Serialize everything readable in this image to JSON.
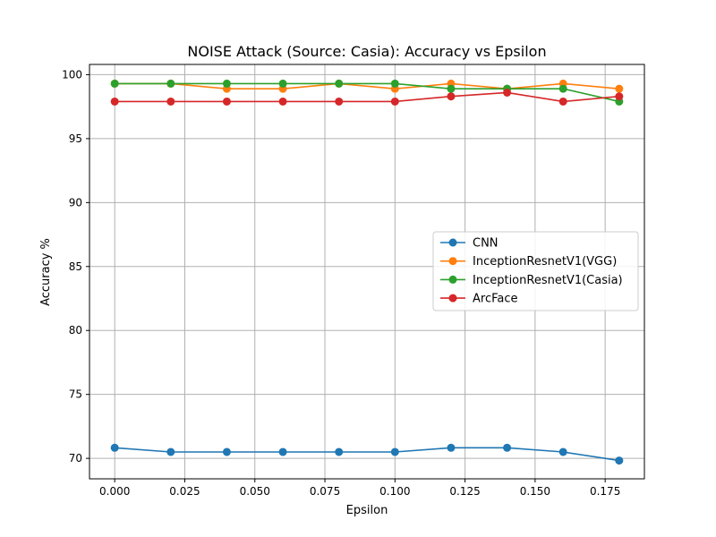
{
  "chart_data": {
    "type": "line",
    "title": "NOISE Attack (Source: Casia): Accuracy vs Epsilon",
    "xlabel": "Epsilon",
    "ylabel": "Accuracy %",
    "x": [
      0.0,
      0.02,
      0.04,
      0.06,
      0.08,
      0.1,
      0.12,
      0.14,
      0.16,
      0.18
    ],
    "xlim": [
      -0.009,
      0.189
    ],
    "ylim": [
      68.4,
      100.8
    ],
    "xticks": [
      0.0,
      0.025,
      0.05,
      0.075,
      0.1,
      0.125,
      0.15,
      0.175
    ],
    "xtick_labels": [
      "0.000",
      "0.025",
      "0.050",
      "0.075",
      "0.100",
      "0.125",
      "0.150",
      "0.175"
    ],
    "yticks": [
      70,
      75,
      80,
      85,
      90,
      95,
      100
    ],
    "ytick_labels": [
      "70",
      "75",
      "80",
      "85",
      "90",
      "95",
      "100"
    ],
    "grid": true,
    "legend_position": "center-right",
    "series": [
      {
        "name": "CNN",
        "color": "#1f77b4",
        "values": [
          70.83,
          70.5,
          70.5,
          70.5,
          70.5,
          70.5,
          70.83,
          70.83,
          70.5,
          69.83
        ]
      },
      {
        "name": "InceptionResnetV1(VGG)",
        "color": "#ff7f0e",
        "values": [
          99.3,
          99.3,
          98.9,
          98.9,
          99.3,
          98.9,
          99.3,
          98.9,
          99.3,
          98.9
        ]
      },
      {
        "name": "InceptionResnetV1(Casia)",
        "color": "#2ca02c",
        "values": [
          99.3,
          99.3,
          99.3,
          99.3,
          99.3,
          99.3,
          98.9,
          98.9,
          98.9,
          97.9
        ]
      },
      {
        "name": "ArcFace",
        "color": "#d62728",
        "values": [
          97.9,
          97.9,
          97.9,
          97.9,
          97.9,
          97.9,
          98.3,
          98.6,
          97.9,
          98.3
        ]
      }
    ]
  }
}
